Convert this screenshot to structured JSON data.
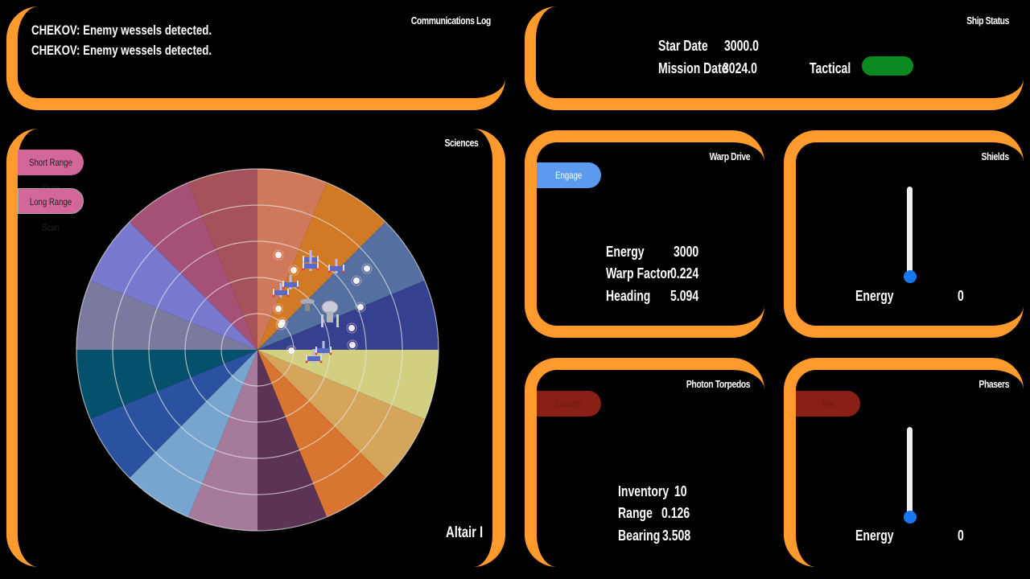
{
  "comms": {
    "title": "Communications Log",
    "messages": [
      "CHEKOV: Enemy wessels detected.",
      "CHEKOV: Enemy wessels detected."
    ]
  },
  "status": {
    "title": "Ship Status",
    "star_date_label": "Star Date",
    "star_date": "3000.0",
    "mission_date_label": "Mission Date",
    "mission_date": "3024.0",
    "tactical_label": "Tactical",
    "tactical_color": "#0a8a1e"
  },
  "sciences": {
    "title": "Sciences",
    "short_scan": "Short Range Scan",
    "long_scan": "Long Range Scan",
    "location": "Altair I",
    "sector_colors": [
      "#d0785a",
      "#d07a25",
      "#5570a0",
      "#35408f",
      "#d2d080",
      "#d4a55a",
      "#d87530",
      "#5a3355",
      "#a57a9a",
      "#78a5cf",
      "#2a52a0",
      "#05506a",
      "#7a7a9f",
      "#7878cf",
      "#a55075",
      "#a5525a"
    ]
  },
  "warp": {
    "title": "Warp Drive",
    "engage": "Engage",
    "energy_label": "Energy",
    "energy": "3000",
    "warp_label": "Warp Factor",
    "warp": "0.224",
    "heading_label": "Heading",
    "heading": "5.094"
  },
  "shields": {
    "title": "Shields",
    "energy_label": "Energy",
    "energy": "0",
    "level": 0
  },
  "torpedos": {
    "title": "Photon Torpedos",
    "launch": "Launch",
    "inventory_label": "Inventory",
    "inventory": "10",
    "range_label": "Range",
    "range": "0.126",
    "bearing_label": "Bearing",
    "bearing": "3.508"
  },
  "phasers": {
    "title": "Phasers",
    "fire": "Fire",
    "energy_label": "Energy",
    "energy": "0",
    "level": 0
  },
  "colors": {
    "frame": "#ff9a2e",
    "accent_blue": "#5b9cf0",
    "disabled_red": "#8a2015",
    "scan_pink": "#d4679a"
  }
}
